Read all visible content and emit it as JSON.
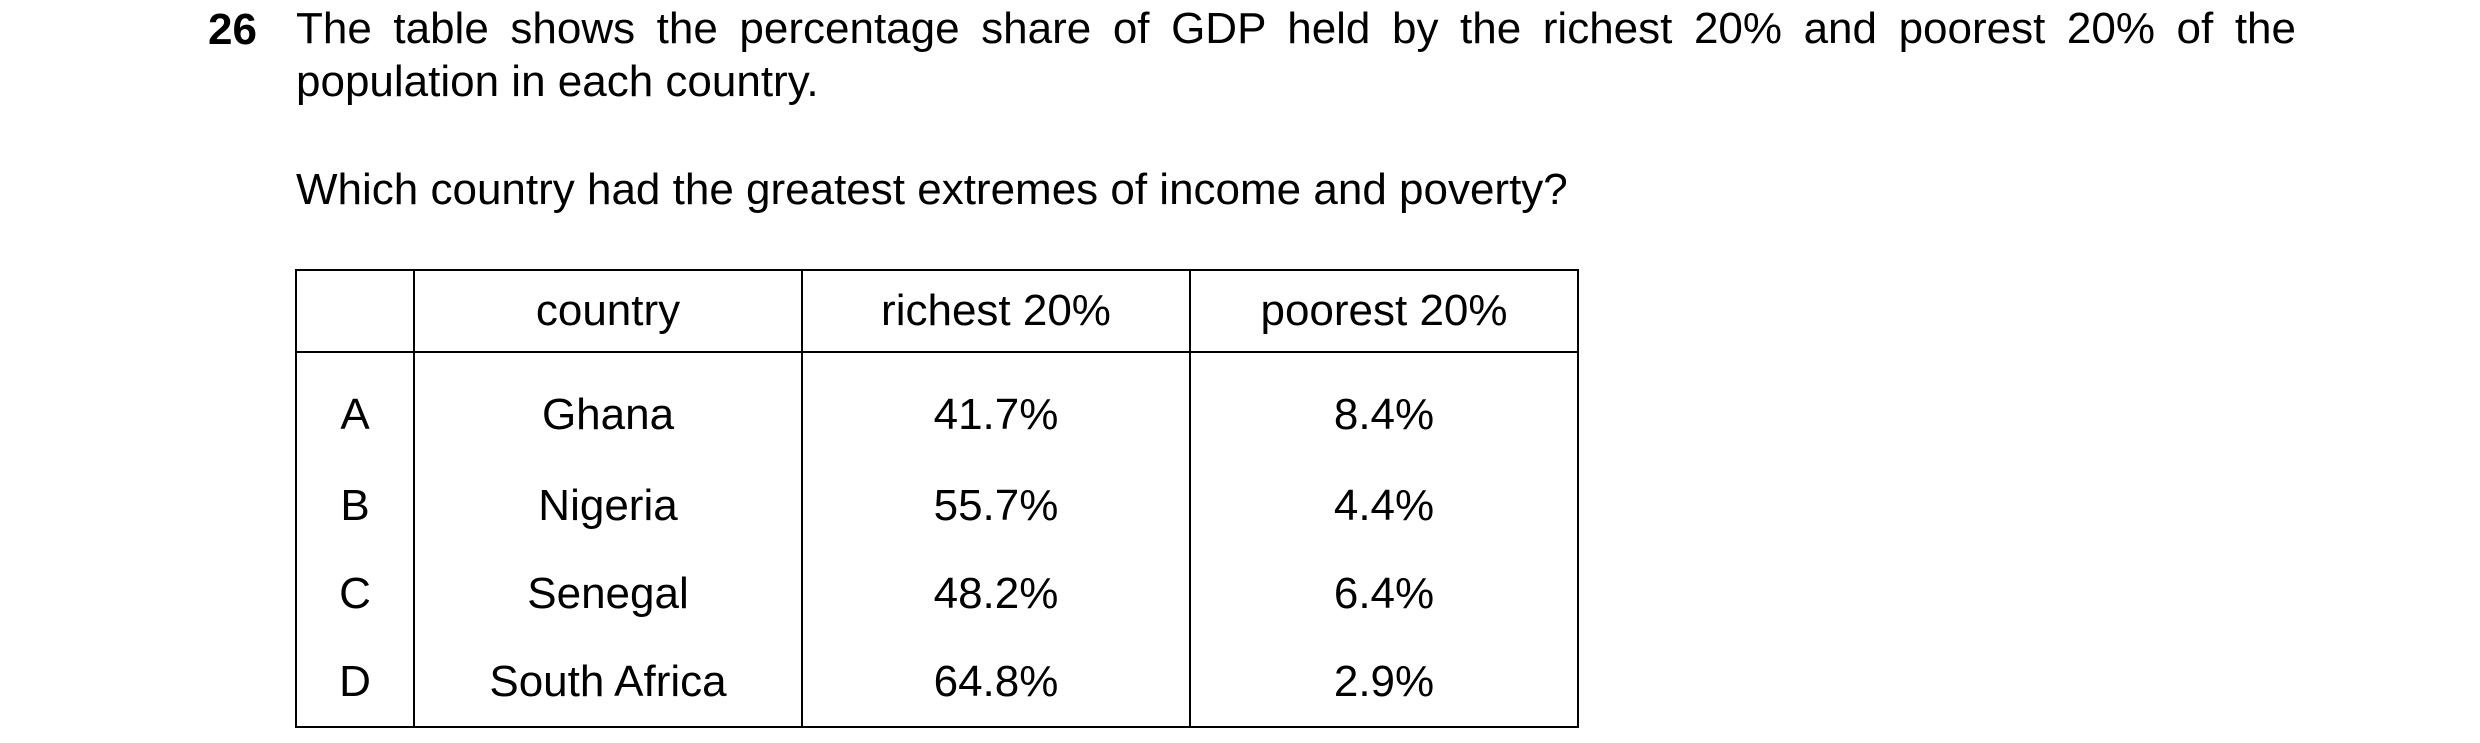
{
  "question": {
    "number": "26",
    "stem": "The table shows the percentage share of GDP held by the richest 20% and poorest 20% of the population in each country.",
    "prompt": "Which country had the greatest extremes of income and poverty?"
  },
  "table": {
    "headers": [
      "",
      "country",
      "richest 20%",
      "poorest 20%"
    ],
    "rows": [
      {
        "option": "A",
        "country": "Ghana",
        "richest": "41.7%",
        "poorest": "8.4%"
      },
      {
        "option": "B",
        "country": "Nigeria",
        "richest": "55.7%",
        "poorest": "4.4%"
      },
      {
        "option": "C",
        "country": "Senegal",
        "richest": "48.2%",
        "poorest": "6.4%"
      },
      {
        "option": "D",
        "country": "South Africa",
        "richest": "64.8%",
        "poorest": "2.9%"
      }
    ]
  }
}
